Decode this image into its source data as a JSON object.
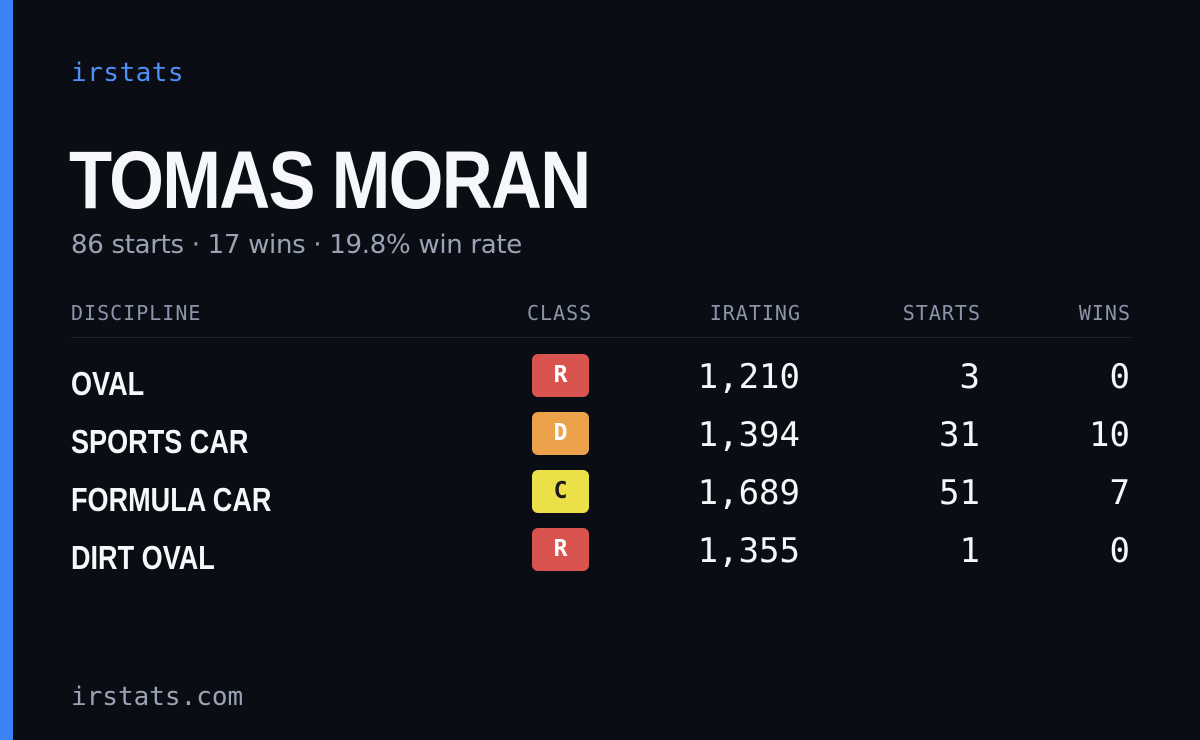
{
  "brand": "irstats",
  "driver": {
    "name": "TOMAS MORAN",
    "summary": "86 starts · 17 wins · 19.8% win rate"
  },
  "table": {
    "headers": {
      "discipline": "DISCIPLINE",
      "class": "CLASS",
      "irating": "IRATING",
      "starts": "STARTS",
      "wins": "WINS"
    },
    "rows": [
      {
        "discipline": "OVAL",
        "class": "R",
        "class_bg": "#d9534f",
        "class_fg": "#ffffff",
        "irating": "1,210",
        "starts": "3",
        "wins": "0"
      },
      {
        "discipline": "SPORTS CAR",
        "class": "D",
        "class_bg": "#eba24a",
        "class_fg": "#ffffff",
        "irating": "1,394",
        "starts": "31",
        "wins": "10"
      },
      {
        "discipline": "FORMULA CAR",
        "class": "C",
        "class_bg": "#ece048",
        "class_fg": "#1c1c1c",
        "irating": "1,689",
        "starts": "51",
        "wins": "7"
      },
      {
        "discipline": "DIRT OVAL",
        "class": "R",
        "class_bg": "#d9534f",
        "class_fg": "#ffffff",
        "irating": "1,355",
        "starts": "1",
        "wins": "0"
      }
    ]
  },
  "footer": "irstats.com",
  "colors": {
    "background": "#0a0d14",
    "accent": "#3b82f6",
    "brand": "#4f8ff7",
    "muted": "#9aa3b5"
  }
}
